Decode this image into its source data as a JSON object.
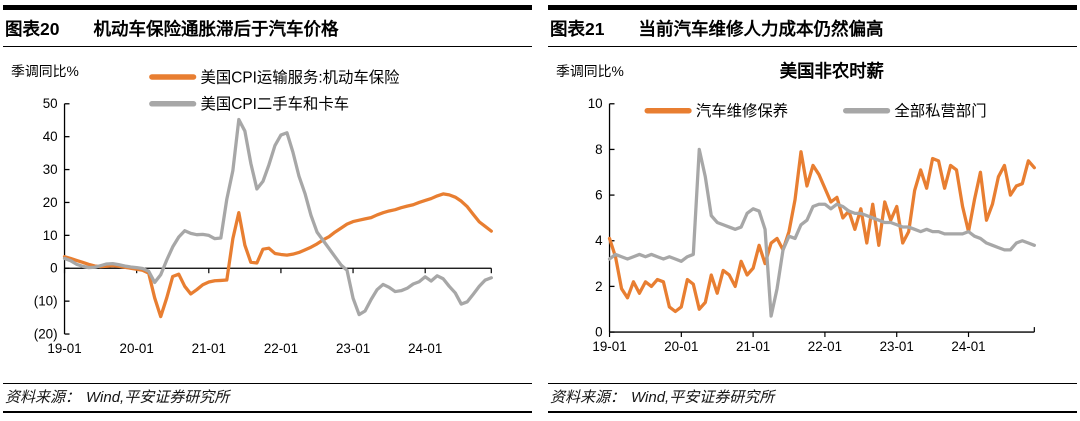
{
  "panels": [
    {
      "fig_label": "图表20",
      "fig_title": "机动车保险通胀滞后于汽车价格",
      "source_prefix": "资料来源：",
      "source_text": "Wind,平安证券研究所"
    },
    {
      "fig_label": "图表21",
      "fig_title": "当前汽车维修人力成本仍然偏高",
      "source_prefix": "资料来源：",
      "source_text": "Wind,平安证券研究所"
    }
  ],
  "colors": {
    "orange": "#E87E31",
    "gray": "#A7A7A7",
    "negative": "#E80000",
    "axis": "#000000"
  },
  "chart_data": [
    {
      "type": "line",
      "title": "",
      "unit_label": "季调同比%",
      "x_monthly_start": "2019-01",
      "x_tick_labels": [
        "19-01",
        "20-01",
        "21-01",
        "22-01",
        "23-01",
        "24-01"
      ],
      "ylim": [
        -20,
        50
      ],
      "yticks": [
        50,
        40,
        30,
        20,
        10,
        0,
        -10,
        -20
      ],
      "negative_label_style": "parentheses_red",
      "x_axis_value": 0,
      "grid": false,
      "legend_position": "top",
      "legend_layout": "stacked",
      "series": [
        {
          "name": "美国CPI运输服务:机动车保险",
          "color": "#E87E31",
          "values": [
            3.5,
            3.0,
            2.4,
            1.8,
            1.2,
            0.7,
            0.5,
            0.6,
            0.8,
            0.6,
            0.3,
            0.0,
            -0.3,
            -0.6,
            -1.5,
            -9.0,
            -14.7,
            -9.0,
            -2.5,
            -1.8,
            -5.5,
            -7.8,
            -6.5,
            -5.0,
            -4.2,
            -3.8,
            -3.7,
            -3.6,
            9.0,
            16.9,
            7.0,
            1.8,
            1.6,
            5.8,
            6.1,
            4.5,
            4.2,
            4.0,
            4.3,
            4.8,
            5.6,
            6.4,
            7.4,
            8.6,
            9.6,
            11.0,
            12.2,
            13.4,
            14.2,
            14.6,
            15.0,
            15.4,
            16.2,
            16.9,
            17.4,
            17.8,
            18.4,
            18.9,
            19.3,
            20.0,
            20.6,
            21.2,
            22.0,
            22.6,
            22.3,
            21.6,
            20.4,
            18.7,
            16.4,
            14.1,
            12.7,
            11.3
          ]
        },
        {
          "name": "美国CPI二手车和卡车",
          "color": "#A7A7A7",
          "values": [
            3.0,
            2.3,
            1.2,
            0.6,
            0.2,
            0.3,
            0.8,
            1.3,
            1.4,
            1.1,
            0.7,
            0.4,
            0.2,
            -0.1,
            -0.9,
            -4.3,
            -2.0,
            2.5,
            6.5,
            9.5,
            11.4,
            10.6,
            10.2,
            10.3,
            10.0,
            9.0,
            9.2,
            21.0,
            29.7,
            45.2,
            41.7,
            31.9,
            24.1,
            26.4,
            31.4,
            37.3,
            40.5,
            41.2,
            35.3,
            28.0,
            22.7,
            16.1,
            11.0,
            8.5,
            6.0,
            3.5,
            1.0,
            -0.6,
            -9.1,
            -14.1,
            -13.0,
            -9.5,
            -6.5,
            -4.9,
            -5.8,
            -7.1,
            -6.8,
            -6.1,
            -4.8,
            -4.1,
            -2.6,
            -3.9,
            -2.3,
            -3.2,
            -5.5,
            -7.5,
            -10.9,
            -10.2,
            -7.9,
            -5.5,
            -3.6,
            -2.9
          ]
        }
      ]
    },
    {
      "type": "line",
      "title": "美国非农时薪",
      "unit_label": "季调同比%",
      "x_monthly_start": "2019-01",
      "x_tick_labels": [
        "19-01",
        "20-01",
        "21-01",
        "22-01",
        "23-01",
        "24-01"
      ],
      "ylim": [
        0,
        10
      ],
      "yticks": [
        10,
        8,
        6,
        4,
        2,
        0
      ],
      "negative_label_style": "none",
      "x_axis_value": 0,
      "grid": false,
      "legend_position": "top",
      "legend_layout": "inline",
      "series": [
        {
          "name": "汽车维修保养",
          "color": "#E87E31",
          "values": [
            4.1,
            3.3,
            1.9,
            1.5,
            2.2,
            1.7,
            2.2,
            2.0,
            2.3,
            2.2,
            1.1,
            0.9,
            1.1,
            2.3,
            2.1,
            1.0,
            1.3,
            2.5,
            1.7,
            2.7,
            2.5,
            2.0,
            3.1,
            2.5,
            2.8,
            3.8,
            3.0,
            3.9,
            4.1,
            3.6,
            4.4,
            5.8,
            7.9,
            6.4,
            7.3,
            6.9,
            6.3,
            5.7,
            5.9,
            5.0,
            5.3,
            4.5,
            5.4,
            3.9,
            5.6,
            3.8,
            5.7,
            4.9,
            5.5,
            3.9,
            4.4,
            6.2,
            7.1,
            6.3,
            7.6,
            7.5,
            6.3,
            7.3,
            7.1,
            5.5,
            4.4,
            5.8,
            7.0,
            4.9,
            5.6,
            6.8,
            7.3,
            6.0,
            6.4,
            6.5,
            7.5,
            7.2
          ]
        },
        {
          "name": "全部私营部门",
          "color": "#A7A7A7",
          "values": [
            3.2,
            3.4,
            3.3,
            3.2,
            3.3,
            3.4,
            3.3,
            3.4,
            3.3,
            3.2,
            3.3,
            3.2,
            3.1,
            3.3,
            3.4,
            8.0,
            6.8,
            5.1,
            4.8,
            4.7,
            4.6,
            4.5,
            4.6,
            5.2,
            5.4,
            5.3,
            4.5,
            0.7,
            1.9,
            3.6,
            4.2,
            4.1,
            4.7,
            4.9,
            5.5,
            5.6,
            5.6,
            5.4,
            5.6,
            5.5,
            5.3,
            5.2,
            5.2,
            5.1,
            5.0,
            4.9,
            4.8,
            4.8,
            4.7,
            4.6,
            4.6,
            4.5,
            4.4,
            4.5,
            4.4,
            4.4,
            4.3,
            4.3,
            4.3,
            4.3,
            4.4,
            4.2,
            4.1,
            3.9,
            3.8,
            3.7,
            3.6,
            3.6,
            3.9,
            4.0,
            3.9,
            3.8
          ]
        }
      ]
    }
  ]
}
